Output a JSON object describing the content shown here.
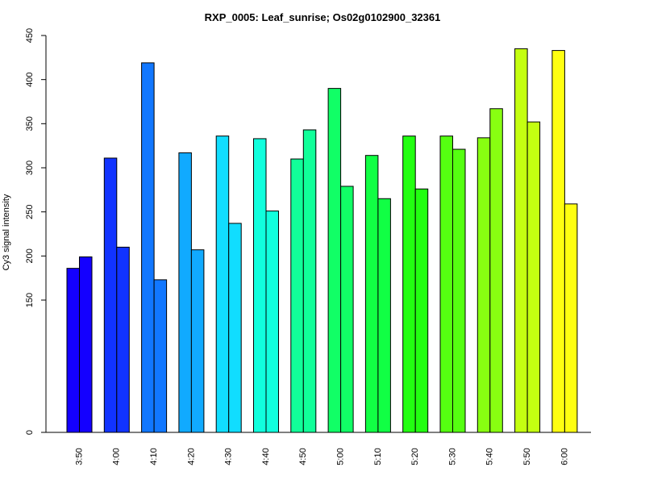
{
  "chart_data": {
    "type": "bar",
    "title": "RXP_0005: Leaf_sunrise; Os02g0102900_32361",
    "xlabel": "",
    "ylabel": "Cy3 signal intensity",
    "yticks": [
      0,
      150,
      200,
      250,
      300,
      350,
      400,
      450
    ],
    "categories": [
      "3:50",
      "4:00",
      "4:10",
      "4:20",
      "4:30",
      "4:40",
      "4:50",
      "5:00",
      "5:10",
      "5:20",
      "5:30",
      "5:40",
      "5:50",
      "6:00"
    ],
    "colors": [
      "#1400ff",
      "#1133ff",
      "#1177ff",
      "#11aaff",
      "#11ddff",
      "#11ffdd",
      "#11ff99",
      "#11ff66",
      "#11ff44",
      "#22ff11",
      "#55ff11",
      "#88ff11",
      "#c4ff11",
      "#ffff11"
    ],
    "series": [
      {
        "values": [
          186,
          311,
          419,
          317,
          336,
          333,
          310,
          390,
          314,
          336,
          336,
          334,
          435,
          433
        ]
      },
      {
        "values": [
          199,
          210,
          173,
          207,
          237,
          251,
          343,
          279,
          265,
          276,
          321,
          367,
          352,
          259
        ]
      }
    ],
    "grid": false,
    "legend": "none"
  }
}
